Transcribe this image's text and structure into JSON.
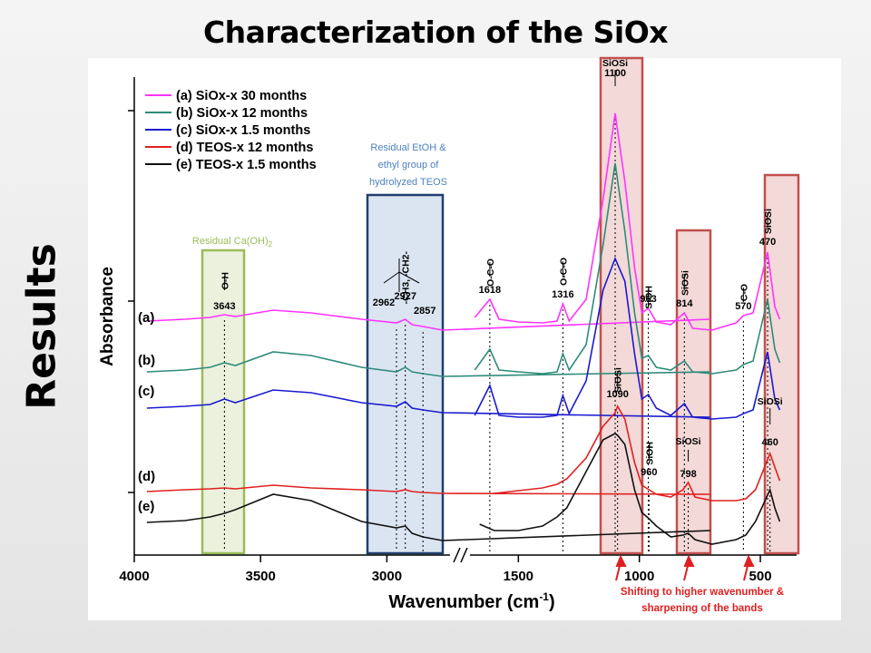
{
  "slide": {
    "title": "Characterization of the SiOx",
    "section_label": "Results"
  },
  "chart_data": {
    "type": "line",
    "xlabel": "Wavenumber (cm",
    "xlabel_sup": "-1",
    "xlabel_close": ")",
    "ylabel": "Absorbance",
    "xlim": [
      4000,
      400
    ],
    "x_axis_break_between": [
      1750,
      1700
    ],
    "x_ticks": [
      4000,
      3500,
      3000,
      1500,
      1000,
      500
    ],
    "legend_position": "top-left",
    "series": [
      {
        "name": "(a) SiOx-x 30 months",
        "label": "(a)",
        "color": "#ff33ff",
        "points": [
          [
            3950,
            354
          ],
          [
            3800,
            352
          ],
          [
            3700,
            350
          ],
          [
            3643,
            347
          ],
          [
            3600,
            349
          ],
          [
            3450,
            342
          ],
          [
            3300,
            345
          ],
          [
            3100,
            352
          ],
          [
            2962,
            356
          ],
          [
            2927,
            352
          ],
          [
            2900,
            358
          ],
          [
            2857,
            360
          ],
          [
            2780,
            364
          ],
          [
            1720,
            352
          ],
          [
            1680,
            350
          ],
          [
            1618,
            330
          ],
          [
            1580,
            352
          ],
          [
            1500,
            355
          ],
          [
            1400,
            356
          ],
          [
            1340,
            354
          ],
          [
            1316,
            335
          ],
          [
            1290,
            354
          ],
          [
            1220,
            330
          ],
          [
            1150,
            220
          ],
          [
            1100,
            125
          ],
          [
            1060,
            200
          ],
          [
            1020,
            295
          ],
          [
            990,
            345
          ],
          [
            963,
            340
          ],
          [
            930,
            355
          ],
          [
            870,
            358
          ],
          [
            814,
            345
          ],
          [
            780,
            362
          ],
          [
            700,
            364
          ],
          [
            600,
            356
          ],
          [
            570,
            348
          ],
          [
            530,
            345
          ],
          [
            470,
            278
          ],
          [
            440,
            338
          ],
          [
            420,
            352
          ]
        ]
      },
      {
        "name": "(b) SiOx-x 12 months",
        "label": "(b)",
        "color": "#2e8b7a",
        "points": [
          [
            3950,
            410
          ],
          [
            3800,
            408
          ],
          [
            3700,
            405
          ],
          [
            3643,
            400
          ],
          [
            3600,
            403
          ],
          [
            3450,
            388
          ],
          [
            3300,
            392
          ],
          [
            3100,
            405
          ],
          [
            2962,
            410
          ],
          [
            2927,
            405
          ],
          [
            2900,
            410
          ],
          [
            2857,
            412
          ],
          [
            2780,
            415
          ],
          [
            1720,
            410
          ],
          [
            1680,
            408
          ],
          [
            1618,
            385
          ],
          [
            1580,
            408
          ],
          [
            1500,
            410
          ],
          [
            1400,
            412
          ],
          [
            1340,
            410
          ],
          [
            1316,
            390
          ],
          [
            1290,
            408
          ],
          [
            1220,
            380
          ],
          [
            1150,
            270
          ],
          [
            1100,
            180
          ],
          [
            1060,
            255
          ],
          [
            1020,
            345
          ],
          [
            990,
            395
          ],
          [
            963,
            392
          ],
          [
            930,
            405
          ],
          [
            870,
            408
          ],
          [
            814,
            398
          ],
          [
            780,
            410
          ],
          [
            700,
            412
          ],
          [
            600,
            408
          ],
          [
            570,
            402
          ],
          [
            530,
            398
          ],
          [
            470,
            330
          ],
          [
            440,
            385
          ],
          [
            420,
            400
          ]
        ]
      },
      {
        "name": "(c) SiOx-x 1.5 months",
        "label": "(c)",
        "color": "#1a1ad0",
        "points": [
          [
            3950,
            450
          ],
          [
            3800,
            448
          ],
          [
            3700,
            446
          ],
          [
            3643,
            440
          ],
          [
            3600,
            444
          ],
          [
            3450,
            430
          ],
          [
            3300,
            433
          ],
          [
            3100,
            444
          ],
          [
            2962,
            448
          ],
          [
            2927,
            443
          ],
          [
            2900,
            450
          ],
          [
            2857,
            452
          ],
          [
            2780,
            455
          ],
          [
            1720,
            460
          ],
          [
            1680,
            458
          ],
          [
            1618,
            425
          ],
          [
            1580,
            458
          ],
          [
            1500,
            460
          ],
          [
            1400,
            460
          ],
          [
            1340,
            458
          ],
          [
            1316,
            436
          ],
          [
            1290,
            456
          ],
          [
            1220,
            420
          ],
          [
            1150,
            320
          ],
          [
            1100,
            285
          ],
          [
            1060,
            310
          ],
          [
            1020,
            390
          ],
          [
            990,
            440
          ],
          [
            963,
            435
          ],
          [
            930,
            450
          ],
          [
            870,
            458
          ],
          [
            814,
            445
          ],
          [
            780,
            460
          ],
          [
            700,
            462
          ],
          [
            600,
            460
          ],
          [
            570,
            456
          ],
          [
            530,
            452
          ],
          [
            470,
            388
          ],
          [
            440,
            440
          ],
          [
            420,
            452
          ]
        ]
      },
      {
        "name": "(d) TEOS-x 12 months",
        "label": "(d)",
        "color": "#e02020",
        "points": [
          [
            3950,
            542
          ],
          [
            3800,
            540
          ],
          [
            3700,
            539
          ],
          [
            3643,
            538
          ],
          [
            3600,
            539
          ],
          [
            3450,
            535
          ],
          [
            3300,
            538
          ],
          [
            3100,
            540
          ],
          [
            2962,
            542
          ],
          [
            2927,
            540
          ],
          [
            2900,
            542
          ],
          [
            2857,
            543
          ],
          [
            2780,
            544
          ],
          [
            1720,
            545
          ],
          [
            1600,
            544
          ],
          [
            1500,
            541
          ],
          [
            1400,
            538
          ],
          [
            1340,
            534
          ],
          [
            1300,
            528
          ],
          [
            1220,
            505
          ],
          [
            1150,
            470
          ],
          [
            1100,
            455
          ],
          [
            1090,
            448
          ],
          [
            1060,
            462
          ],
          [
            1020,
            510
          ],
          [
            990,
            535
          ],
          [
            960,
            540
          ],
          [
            930,
            545
          ],
          [
            870,
            548
          ],
          [
            820,
            540
          ],
          [
            798,
            532
          ],
          [
            770,
            548
          ],
          [
            700,
            552
          ],
          [
            600,
            552
          ],
          [
            560,
            550
          ],
          [
            520,
            540
          ],
          [
            460,
            500
          ],
          [
            440,
            515
          ],
          [
            420,
            530
          ]
        ]
      },
      {
        "name": "(e) TEOS-x 1.5 months",
        "label": "(e)",
        "color": "#111111",
        "points": [
          [
            3950,
            576
          ],
          [
            3800,
            574
          ],
          [
            3700,
            570
          ],
          [
            3643,
            566
          ],
          [
            3600,
            562
          ],
          [
            3450,
            545
          ],
          [
            3300,
            552
          ],
          [
            3100,
            575
          ],
          [
            2962,
            582
          ],
          [
            2927,
            580
          ],
          [
            2900,
            588
          ],
          [
            2857,
            592
          ],
          [
            2780,
            596
          ],
          [
            1720,
            585
          ],
          [
            1660,
            578
          ],
          [
            1600,
            585
          ],
          [
            1500,
            585
          ],
          [
            1400,
            580
          ],
          [
            1340,
            570
          ],
          [
            1300,
            560
          ],
          [
            1220,
            520
          ],
          [
            1150,
            485
          ],
          [
            1100,
            478
          ],
          [
            1090,
            480
          ],
          [
            1060,
            490
          ],
          [
            1020,
            540
          ],
          [
            990,
            565
          ],
          [
            960,
            572
          ],
          [
            930,
            580
          ],
          [
            870,
            592
          ],
          [
            820,
            590
          ],
          [
            798,
            588
          ],
          [
            770,
            595
          ],
          [
            700,
            600
          ],
          [
            600,
            595
          ],
          [
            560,
            590
          ],
          [
            520,
            575
          ],
          [
            460,
            540
          ],
          [
            440,
            560
          ],
          [
            420,
            575
          ]
        ]
      }
    ],
    "peak_labels": [
      {
        "text": "3643",
        "x": 3643,
        "y": 347
      },
      {
        "text": "2962",
        "x": 2962,
        "y": 357
      },
      {
        "text": "2927",
        "x": 2927,
        "y": 352
      },
      {
        "text": "2857",
        "x": 2857,
        "y": 360
      },
      {
        "text": "1618",
        "x": 1618,
        "y": 330
      },
      {
        "text": "1316",
        "x": 1316,
        "y": 335
      },
      {
        "text": "1100",
        "x": 1100,
        "y": 125
      },
      {
        "text": "963",
        "x": 963,
        "y": 340
      },
      {
        "text": "814",
        "x": 814,
        "y": 345
      },
      {
        "text": "570",
        "x": 570,
        "y": 348
      },
      {
        "text": "470",
        "x": 470,
        "y": 278
      },
      {
        "text": "1090",
        "x": 1090,
        "y": 448
      },
      {
        "text": "960",
        "x": 960,
        "y": 540
      },
      {
        "text": "798",
        "x": 798,
        "y": 532
      },
      {
        "text": "460",
        "x": 460,
        "y": 500
      }
    ],
    "group_labels": [
      {
        "text": "O-H",
        "x": 3643
      },
      {
        "text": "-CH3, -CH2-",
        "x": 2927
      },
      {
        "text": "O-C-O",
        "x": 1618
      },
      {
        "text": "O-C-O",
        "x": 1316
      },
      {
        "text": "SiOSi",
        "x": 1100
      },
      {
        "text": "SiOH",
        "x": 963
      },
      {
        "text": "SiOSi",
        "x": 814
      },
      {
        "text": "C-O",
        "x": 570
      },
      {
        "text": "SiOSi",
        "x": 470
      },
      {
        "text": "SiOSi",
        "x": 1090
      },
      {
        "text": "SiOH",
        "x": 960
      },
      {
        "text": "SiOSi",
        "x": 798
      },
      {
        "text": "SiOSi",
        "x": 460
      }
    ],
    "annotations": {
      "residual_caoh2": "Residual Ca(OH)",
      "residual_caoh2_sub": "2",
      "residual_etoh": [
        "Residual EtOH &",
        "ethyl group of",
        "hydrolyzed TEOS"
      ],
      "shift_note": [
        "Shifting to higher wavenumber &",
        "sharpening of the bands"
      ]
    },
    "colors": {
      "caoh2_box": "#9bbb59",
      "etoh_box": "#4f81bd",
      "sioxbox": "#c0504d",
      "annotation_red": "#e02020"
    }
  }
}
